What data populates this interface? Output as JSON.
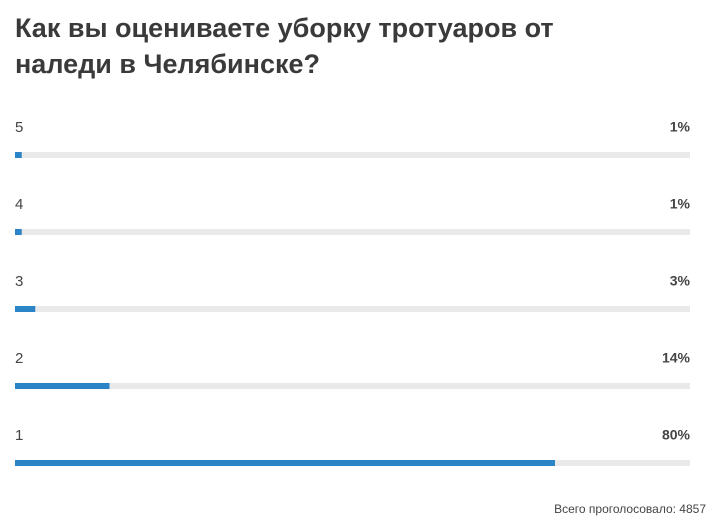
{
  "chart_data": {
    "type": "bar",
    "orientation": "horizontal",
    "title": "Как вы оцениваете уборку тротуаров от наледи в Челябинске?",
    "categories": [
      "5",
      "4",
      "3",
      "2",
      "1"
    ],
    "values": [
      1,
      1,
      3,
      14,
      80
    ],
    "value_labels": [
      "1%",
      "1%",
      "3%",
      "14%",
      "80%"
    ],
    "color": "#2b84c6",
    "xlim": [
      0,
      100
    ],
    "footnote": "Всего проголосовало: 4857"
  }
}
